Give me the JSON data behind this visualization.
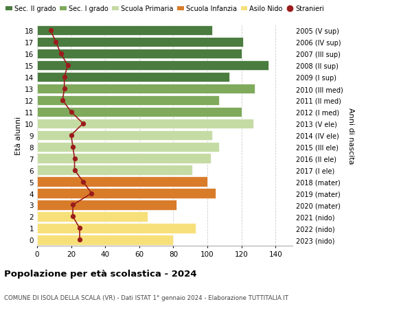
{
  "ages": [
    18,
    17,
    16,
    15,
    14,
    13,
    12,
    11,
    10,
    9,
    8,
    7,
    6,
    5,
    4,
    3,
    2,
    1,
    0
  ],
  "right_labels": [
    "2005 (V sup)",
    "2006 (IV sup)",
    "2007 (III sup)",
    "2008 (II sup)",
    "2009 (I sup)",
    "2010 (III med)",
    "2011 (II med)",
    "2012 (I med)",
    "2013 (V ele)",
    "2014 (IV ele)",
    "2015 (III ele)",
    "2016 (II ele)",
    "2017 (I ele)",
    "2018 (mater)",
    "2019 (mater)",
    "2020 (mater)",
    "2021 (nido)",
    "2022 (nido)",
    "2023 (nido)"
  ],
  "bar_values": [
    103,
    121,
    120,
    136,
    113,
    128,
    107,
    120,
    127,
    103,
    107,
    102,
    91,
    100,
    105,
    82,
    65,
    93,
    80
  ],
  "bar_colors": [
    "#4a7c3f",
    "#4a7c3f",
    "#4a7c3f",
    "#4a7c3f",
    "#4a7c3f",
    "#7faa5c",
    "#7faa5c",
    "#7faa5c",
    "#c5dba4",
    "#c5dba4",
    "#c5dba4",
    "#c5dba4",
    "#c5dba4",
    "#d97c2a",
    "#d97c2a",
    "#d97c2a",
    "#f7e07a",
    "#f7e07a",
    "#f7e07a"
  ],
  "stranieri_values": [
    8,
    11,
    14,
    18,
    16,
    16,
    15,
    20,
    27,
    20,
    21,
    22,
    22,
    27,
    32,
    21,
    21,
    25,
    25
  ],
  "legend_labels": [
    "Sec. II grado",
    "Sec. I grado",
    "Scuola Primaria",
    "Scuola Infanzia",
    "Asilo Nido",
    "Stranieri"
  ],
  "legend_colors": [
    "#4a7c3f",
    "#7faa5c",
    "#c5dba4",
    "#d97c2a",
    "#f7e07a",
    "#9b1c1c"
  ],
  "stranieri_color": "#9b1c1c",
  "ylabel_left": "Età alunni",
  "ylabel_right": "Anni di nascita",
  "title": "Popolazione per età scolastica - 2024",
  "subtitle": "COMUNE DI ISOLA DELLA SCALA (VR) - Dati ISTAT 1° gennaio 2024 - Elaborazione TUTTITALIA.IT",
  "xlim": [
    0,
    150
  ],
  "xticks": [
    0,
    20,
    40,
    60,
    80,
    100,
    120,
    140
  ],
  "bg_color": "#ffffff"
}
